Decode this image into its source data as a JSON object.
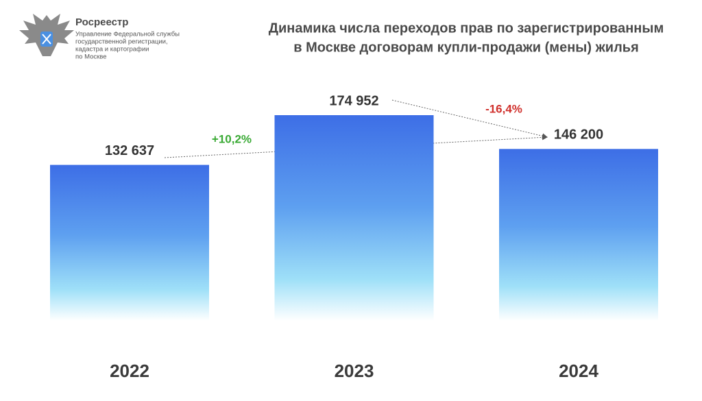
{
  "logo": {
    "brand": "Росреестр",
    "org_lines": [
      "Управление Федеральной службы",
      "государственной регистрации,",
      "кадастра и картографии",
      "по Москве"
    ]
  },
  "chart_data": {
    "type": "bar",
    "title": [
      "Динамика числа переходов прав по зарегистрированным",
      "в Москве договорам купли-продажи (мены) жилья"
    ],
    "categories": [
      "2022",
      "2023",
      "2024"
    ],
    "values": [
      132637,
      174952,
      146200
    ],
    "value_labels": [
      "132 637",
      "174 952",
      "146 200"
    ],
    "color": "#3d6ee6",
    "annotations": [
      {
        "text": "+10,2%",
        "color": "#3aaa35"
      },
      {
        "text": "-16,4%",
        "color": "#d0312d"
      }
    ]
  }
}
